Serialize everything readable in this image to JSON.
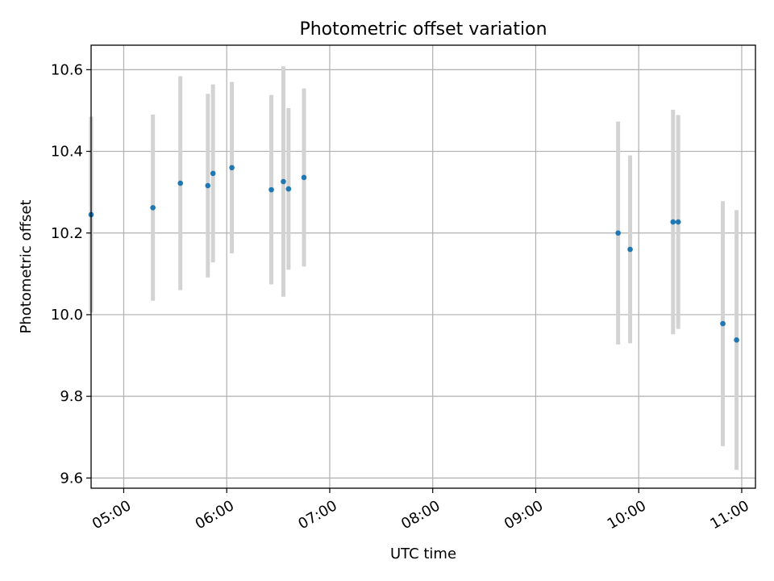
{
  "chart_data": {
    "type": "scatter",
    "title": "Photometric offset variation",
    "xlabel": "UTC time",
    "ylabel": "Photometric offset",
    "x_axis_kind": "time",
    "xlim": [
      "04:41",
      "11:08"
    ],
    "ylim": [
      9.575,
      10.66
    ],
    "xticks": [
      "05:00",
      "06:00",
      "07:00",
      "08:00",
      "09:00",
      "10:00",
      "11:00"
    ],
    "yticks": [
      9.6,
      9.8,
      10.0,
      10.2,
      10.4,
      10.6
    ],
    "ytick_labels": [
      "9.6",
      "9.8",
      "10.0",
      "10.2",
      "10.4",
      "10.6"
    ],
    "grid": true,
    "marker_color": "#1f77b4",
    "errorbar_color": "#d3d3d3",
    "series": [
      {
        "x": [
          "04:41",
          "05:17",
          "05:33",
          "05:49",
          "05:52",
          "06:03",
          "06:26",
          "06:33",
          "06:36",
          "06:45",
          "09:48",
          "09:55",
          "10:20",
          "10:23",
          "10:49",
          "10:57"
        ],
        "y": [
          10.245,
          10.262,
          10.322,
          10.316,
          10.346,
          10.36,
          10.306,
          10.326,
          10.308,
          10.336,
          10.2,
          10.16,
          10.227,
          10.227,
          9.978,
          9.938
        ],
        "yerr": [
          0.24,
          0.228,
          0.262,
          0.225,
          0.218,
          0.21,
          0.232,
          0.282,
          0.198,
          0.218,
          0.273,
          0.23,
          0.275,
          0.262,
          0.3,
          0.318
        ]
      }
    ]
  }
}
